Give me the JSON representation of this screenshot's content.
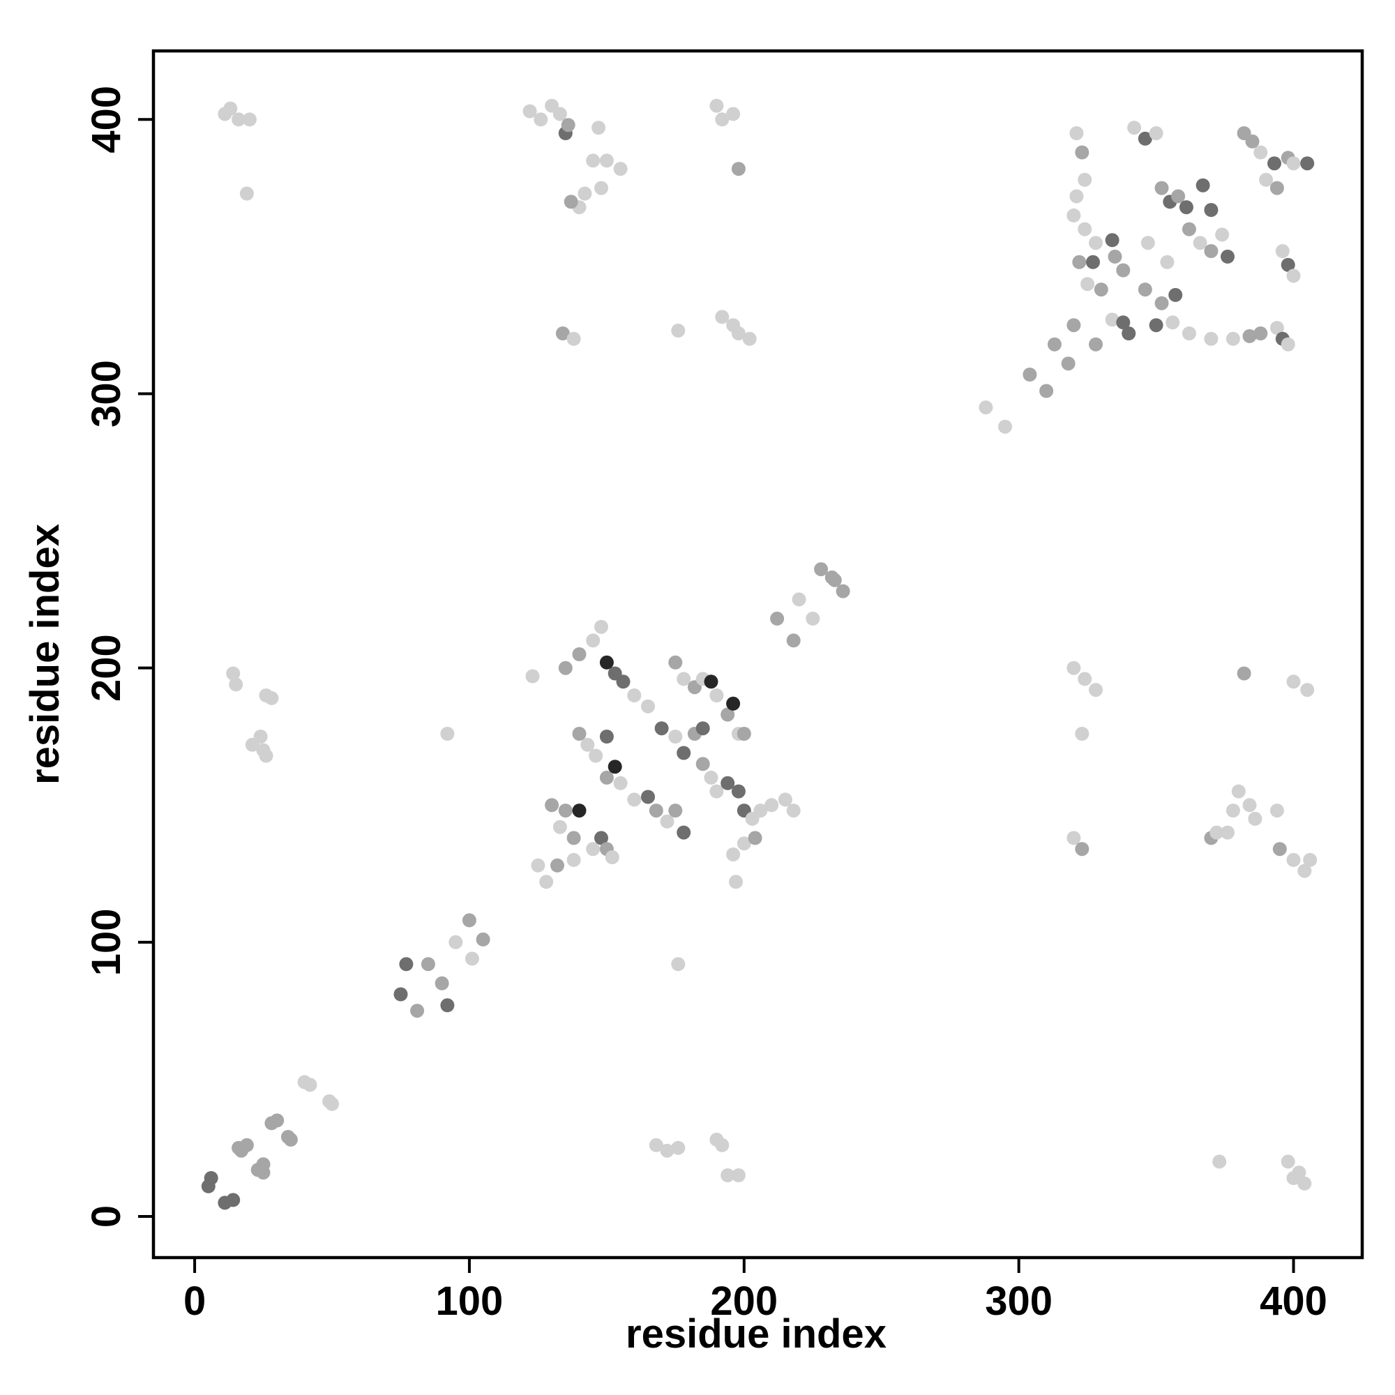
{
  "chart_data": {
    "type": "scatter",
    "title": "",
    "xlabel": "residue index",
    "ylabel": "residue index",
    "xlim": [
      -15,
      425
    ],
    "ylim": [
      -15,
      425
    ],
    "xticks": [
      "0",
      "100",
      "200",
      "300",
      "400"
    ],
    "yticks": [
      "0",
      "100",
      "200",
      "300",
      "400"
    ],
    "grid": false,
    "legend": "none",
    "colors": {
      "light": "#d0d0d0",
      "mid": "#a6a6a6",
      "dark": "#6e6e6e",
      "darkest": "#262626"
    },
    "points": [
      [
        5,
        11,
        "dark"
      ],
      [
        6,
        14,
        "dark"
      ],
      [
        11,
        5,
        "dark"
      ],
      [
        14,
        6,
        "dark"
      ],
      [
        16,
        25,
        "mid"
      ],
      [
        17,
        24,
        "mid"
      ],
      [
        19,
        26,
        "mid"
      ],
      [
        23,
        17,
        "mid"
      ],
      [
        25,
        16,
        "mid"
      ],
      [
        25,
        19,
        "mid"
      ],
      [
        28,
        34,
        "mid"
      ],
      [
        30,
        35,
        "mid"
      ],
      [
        34,
        29,
        "mid"
      ],
      [
        35,
        28,
        "mid"
      ],
      [
        40,
        49,
        "light"
      ],
      [
        42,
        48,
        "light"
      ],
      [
        49,
        42,
        "light"
      ],
      [
        50,
        41,
        "light"
      ],
      [
        75,
        81,
        "dark"
      ],
      [
        77,
        92,
        "dark"
      ],
      [
        81,
        75,
        "mid"
      ],
      [
        85,
        92,
        "mid"
      ],
      [
        90,
        85,
        "mid"
      ],
      [
        92,
        77,
        "dark"
      ],
      [
        95,
        100,
        "light"
      ],
      [
        100,
        108,
        "mid"
      ],
      [
        101,
        94,
        "light"
      ],
      [
        105,
        101,
        "mid"
      ],
      [
        11,
        402,
        "light"
      ],
      [
        13,
        404,
        "light"
      ],
      [
        16,
        400,
        "light"
      ],
      [
        20,
        400,
        "light"
      ],
      [
        19,
        373,
        "light"
      ],
      [
        14,
        198,
        "light"
      ],
      [
        15,
        194,
        "light"
      ],
      [
        26,
        190,
        "light"
      ],
      [
        28,
        189,
        "light"
      ],
      [
        21,
        172,
        "light"
      ],
      [
        25,
        170,
        "light"
      ],
      [
        26,
        168,
        "light"
      ],
      [
        24,
        175,
        "light"
      ],
      [
        122,
        403,
        "light"
      ],
      [
        126,
        400,
        "light"
      ],
      [
        130,
        405,
        "light"
      ],
      [
        133,
        402,
        "light"
      ],
      [
        135,
        395,
        "dark"
      ],
      [
        136,
        398,
        "mid"
      ],
      [
        147,
        397,
        "light"
      ],
      [
        145,
        385,
        "light"
      ],
      [
        150,
        385,
        "light"
      ],
      [
        155,
        382,
        "light"
      ],
      [
        148,
        375,
        "light"
      ],
      [
        140,
        368,
        "light"
      ],
      [
        137,
        370,
        "mid"
      ],
      [
        142,
        373,
        "light"
      ],
      [
        134,
        322,
        "mid"
      ],
      [
        138,
        320,
        "light"
      ],
      [
        190,
        405,
        "light"
      ],
      [
        192,
        400,
        "light"
      ],
      [
        196,
        402,
        "light"
      ],
      [
        198,
        382,
        "mid"
      ],
      [
        176,
        323,
        "light"
      ],
      [
        192,
        328,
        "light"
      ],
      [
        196,
        325,
        "light"
      ],
      [
        198,
        322,
        "light"
      ],
      [
        202,
        320,
        "light"
      ],
      [
        321,
        395,
        "light"
      ],
      [
        323,
        388,
        "mid"
      ],
      [
        324,
        378,
        "light"
      ],
      [
        321,
        372,
        "light"
      ],
      [
        320,
        365,
        "light"
      ],
      [
        324,
        360,
        "light"
      ],
      [
        328,
        355,
        "light"
      ],
      [
        322,
        348,
        "mid"
      ],
      [
        327,
        348,
        "dark"
      ],
      [
        334,
        356,
        "dark"
      ],
      [
        335,
        350,
        "mid"
      ],
      [
        338,
        345,
        "mid"
      ],
      [
        325,
        340,
        "light"
      ],
      [
        330,
        338,
        "mid"
      ],
      [
        334,
        327,
        "light"
      ],
      [
        338,
        326,
        "dark"
      ],
      [
        340,
        322,
        "dark"
      ],
      [
        342,
        397,
        "light"
      ],
      [
        346,
        393,
        "dark"
      ],
      [
        350,
        395,
        "light"
      ],
      [
        352,
        375,
        "mid"
      ],
      [
        355,
        370,
        "dark"
      ],
      [
        358,
        372,
        "mid"
      ],
      [
        361,
        368,
        "dark"
      ],
      [
        367,
        376,
        "dark"
      ],
      [
        370,
        367,
        "dark"
      ],
      [
        347,
        355,
        "light"
      ],
      [
        354,
        348,
        "light"
      ],
      [
        362,
        360,
        "mid"
      ],
      [
        366,
        355,
        "light"
      ],
      [
        370,
        352,
        "mid"
      ],
      [
        374,
        358,
        "light"
      ],
      [
        376,
        350,
        "dark"
      ],
      [
        346,
        338,
        "mid"
      ],
      [
        352,
        333,
        "mid"
      ],
      [
        357,
        336,
        "dark"
      ],
      [
        350,
        325,
        "dark"
      ],
      [
        356,
        326,
        "light"
      ],
      [
        362,
        322,
        "light"
      ],
      [
        370,
        320,
        "light"
      ],
      [
        378,
        320,
        "light"
      ],
      [
        384,
        321,
        "mid"
      ],
      [
        388,
        322,
        "mid"
      ],
      [
        394,
        324,
        "light"
      ],
      [
        396,
        320,
        "dark"
      ],
      [
        398,
        318,
        "light"
      ],
      [
        382,
        395,
        "mid"
      ],
      [
        385,
        392,
        "mid"
      ],
      [
        388,
        388,
        "light"
      ],
      [
        393,
        384,
        "dark"
      ],
      [
        398,
        386,
        "mid"
      ],
      [
        400,
        384,
        "light"
      ],
      [
        405,
        384,
        "dark"
      ],
      [
        390,
        378,
        "light"
      ],
      [
        394,
        375,
        "mid"
      ],
      [
        396,
        352,
        "light"
      ],
      [
        398,
        347,
        "dark"
      ],
      [
        400,
        343,
        "light"
      ],
      [
        313,
        318,
        "mid"
      ],
      [
        320,
        325,
        "mid"
      ],
      [
        328,
        318,
        "mid"
      ],
      [
        318,
        311,
        "mid"
      ],
      [
        304,
        307,
        "mid"
      ],
      [
        310,
        301,
        "mid"
      ],
      [
        288,
        295,
        "light"
      ],
      [
        295,
        288,
        "light"
      ],
      [
        130,
        150,
        "mid"
      ],
      [
        135,
        148,
        "mid"
      ],
      [
        140,
        148,
        "darkest"
      ],
      [
        133,
        142,
        "light"
      ],
      [
        138,
        138,
        "mid"
      ],
      [
        132,
        128,
        "mid"
      ],
      [
        138,
        130,
        "light"
      ],
      [
        145,
        134,
        "light"
      ],
      [
        148,
        138,
        "dark"
      ],
      [
        150,
        134,
        "mid"
      ],
      [
        152,
        131,
        "light"
      ],
      [
        140,
        176,
        "mid"
      ],
      [
        143,
        172,
        "light"
      ],
      [
        146,
        168,
        "light"
      ],
      [
        150,
        175,
        "dark"
      ],
      [
        150,
        160,
        "mid"
      ],
      [
        153,
        164,
        "darkest"
      ],
      [
        155,
        158,
        "light"
      ],
      [
        135,
        200,
        "mid"
      ],
      [
        140,
        205,
        "mid"
      ],
      [
        145,
        210,
        "light"
      ],
      [
        148,
        215,
        "light"
      ],
      [
        150,
        202,
        "darkest"
      ],
      [
        153,
        198,
        "dark"
      ],
      [
        156,
        195,
        "dark"
      ],
      [
        160,
        190,
        "light"
      ],
      [
        165,
        186,
        "light"
      ],
      [
        160,
        152,
        "light"
      ],
      [
        165,
        153,
        "dark"
      ],
      [
        168,
        148,
        "mid"
      ],
      [
        172,
        144,
        "light"
      ],
      [
        175,
        148,
        "mid"
      ],
      [
        178,
        140,
        "dark"
      ],
      [
        170,
        178,
        "dark"
      ],
      [
        175,
        175,
        "light"
      ],
      [
        178,
        169,
        "dark"
      ],
      [
        182,
        176,
        "mid"
      ],
      [
        185,
        178,
        "dark"
      ],
      [
        175,
        202,
        "mid"
      ],
      [
        178,
        196,
        "light"
      ],
      [
        182,
        193,
        "mid"
      ],
      [
        185,
        196,
        "light"
      ],
      [
        188,
        195,
        "darkest"
      ],
      [
        190,
        190,
        "light"
      ],
      [
        194,
        183,
        "mid"
      ],
      [
        196,
        187,
        "darkest"
      ],
      [
        198,
        176,
        "light"
      ],
      [
        200,
        176,
        "mid"
      ],
      [
        185,
        165,
        "mid"
      ],
      [
        188,
        160,
        "light"
      ],
      [
        190,
        155,
        "light"
      ],
      [
        194,
        158,
        "dark"
      ],
      [
        198,
        155,
        "dark"
      ],
      [
        200,
        148,
        "dark"
      ],
      [
        203,
        145,
        "light"
      ],
      [
        206,
        148,
        "light"
      ],
      [
        210,
        150,
        "light"
      ],
      [
        215,
        152,
        "light"
      ],
      [
        218,
        148,
        "light"
      ],
      [
        196,
        132,
        "light"
      ],
      [
        200,
        136,
        "light"
      ],
      [
        204,
        138,
        "mid"
      ],
      [
        197,
        122,
        "light"
      ],
      [
        128,
        122,
        "light"
      ],
      [
        125,
        128,
        "light"
      ],
      [
        123,
        197,
        "light"
      ],
      [
        92,
        176,
        "light"
      ],
      [
        176,
        92,
        "light"
      ],
      [
        212,
        218,
        "mid"
      ],
      [
        218,
        210,
        "mid"
      ],
      [
        220,
        225,
        "light"
      ],
      [
        225,
        218,
        "light"
      ],
      [
        228,
        236,
        "mid"
      ],
      [
        232,
        233,
        "mid"
      ],
      [
        236,
        228,
        "mid"
      ],
      [
        233,
        232,
        "mid"
      ],
      [
        320,
        200,
        "light"
      ],
      [
        324,
        196,
        "light"
      ],
      [
        328,
        192,
        "light"
      ],
      [
        323,
        176,
        "light"
      ],
      [
        320,
        138,
        "light"
      ],
      [
        323,
        134,
        "mid"
      ],
      [
        382,
        198,
        "mid"
      ],
      [
        400,
        195,
        "light"
      ],
      [
        405,
        192,
        "light"
      ],
      [
        380,
        155,
        "light"
      ],
      [
        384,
        150,
        "light"
      ],
      [
        386,
        145,
        "light"
      ],
      [
        378,
        148,
        "light"
      ],
      [
        394,
        148,
        "light"
      ],
      [
        370,
        138,
        "mid"
      ],
      [
        372,
        140,
        "light"
      ],
      [
        376,
        140,
        "light"
      ],
      [
        395,
        134,
        "mid"
      ],
      [
        400,
        130,
        "light"
      ],
      [
        404,
        126,
        "light"
      ],
      [
        406,
        130,
        "light"
      ],
      [
        168,
        26,
        "light"
      ],
      [
        172,
        24,
        "light"
      ],
      [
        176,
        25,
        "light"
      ],
      [
        190,
        28,
        "light"
      ],
      [
        192,
        26,
        "light"
      ],
      [
        194,
        15,
        "light"
      ],
      [
        198,
        15,
        "light"
      ],
      [
        373,
        20,
        "light"
      ],
      [
        398,
        20,
        "light"
      ],
      [
        402,
        16,
        "light"
      ],
      [
        404,
        12,
        "light"
      ],
      [
        400,
        14,
        "light"
      ]
    ]
  }
}
